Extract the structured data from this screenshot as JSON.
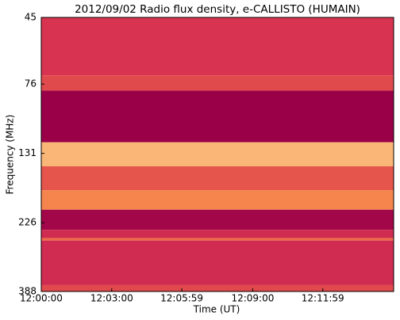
{
  "chart_data": {
    "type": "spectrogram",
    "title": "2012/09/02  Radio flux density, e-CALLISTO (HUMAIN)",
    "xlabel": "Time (UT)",
    "ylabel": "Frequency (MHz)",
    "xlim": [
      "12:00:00",
      "12:15:00"
    ],
    "xticks": [
      "12:00:00",
      "12:03:00",
      "12:05:59",
      "12:09:00",
      "12:11:59"
    ],
    "ylim": [
      45,
      388
    ],
    "yticks": [
      45,
      76,
      131,
      226,
      388
    ],
    "ylog": true,
    "yinverted": true,
    "colormap": [
      "#990047",
      "#d63052",
      "#f47a44",
      "#fde7a0"
    ],
    "bands": [
      {
        "from": 45,
        "to": 71,
        "level": 0.35
      },
      {
        "from": 71,
        "to": 80,
        "level": 0.45
      },
      {
        "from": 80,
        "to": 120,
        "level": 0.0
      },
      {
        "from": 120,
        "to": 145,
        "level": 0.85
      },
      {
        "from": 145,
        "to": 175,
        "level": 0.5
      },
      {
        "from": 175,
        "to": 204,
        "level": 0.7
      },
      {
        "from": 204,
        "to": 239,
        "level": 0.05
      },
      {
        "from": 239,
        "to": 255,
        "level": 0.3
      },
      {
        "from": 255,
        "to": 260,
        "level": 0.6
      },
      {
        "from": 260,
        "to": 369,
        "level": 0.3
      },
      {
        "from": 369,
        "to": 388,
        "level": 0.45
      }
    ]
  }
}
